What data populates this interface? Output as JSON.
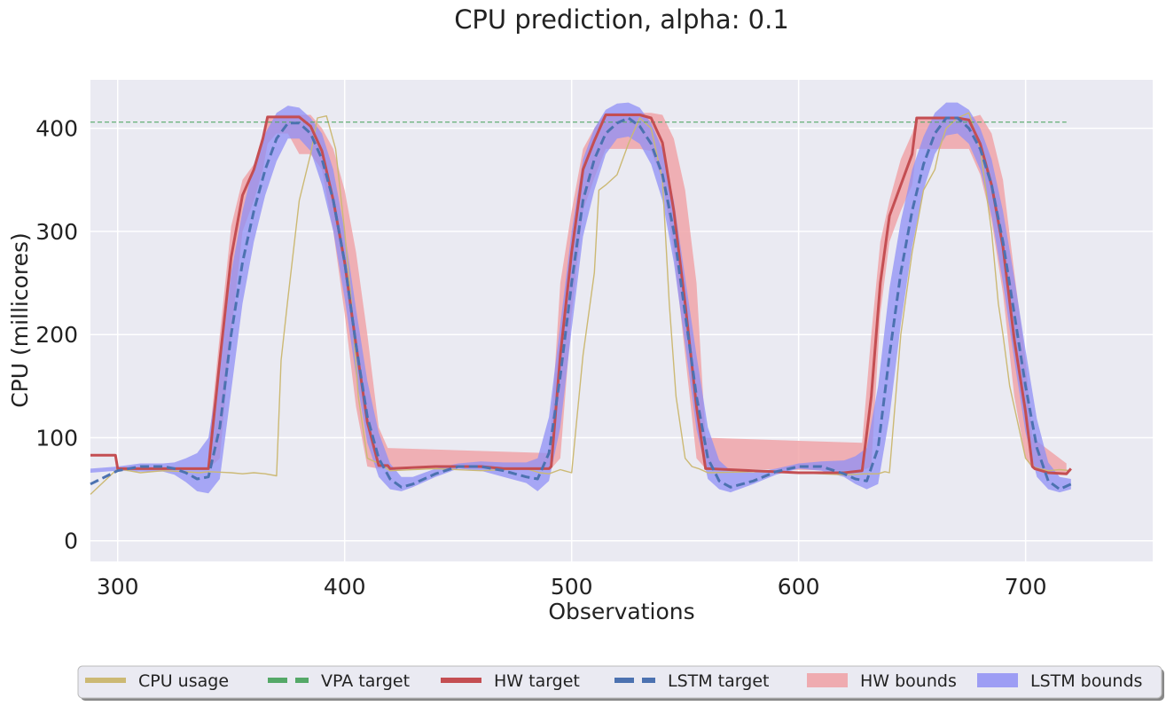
{
  "chart_data": {
    "type": "line",
    "title": "CPU prediction, alpha: 0.1",
    "xlabel": "Observations",
    "ylabel": "CPU (millicores)",
    "xlim": [
      288,
      756
    ],
    "ylim": [
      -20,
      447
    ],
    "xticks": [
      300,
      400,
      500,
      600,
      700
    ],
    "yticks": [
      0,
      100,
      200,
      300,
      400
    ],
    "grid": true,
    "legend_position": "bottom-center",
    "colors": {
      "background": "#eaeaf2",
      "grid": "#ffffff",
      "cpu": "#ccb974",
      "vpa": "#55a868",
      "hw": "#c44e52",
      "lstm": "#4c72b0",
      "hw_band": "#f0a0a4",
      "lstm_band": "#8f8ff5"
    },
    "legend": [
      {
        "key": "cpu",
        "label": "CPU usage"
      },
      {
        "key": "vpa",
        "label": "VPA target"
      },
      {
        "key": "hw",
        "label": "HW target"
      },
      {
        "key": "lstm",
        "label": "LSTM target"
      },
      {
        "key": "hw_band",
        "label": "HW bounds"
      },
      {
        "key": "lstm_band",
        "label": "LSTM bounds"
      }
    ],
    "series": [
      {
        "name": "CPU usage",
        "x": [
          288,
          300,
          310,
          320,
          330,
          336,
          340,
          350,
          355,
          360,
          365,
          370,
          372,
          375,
          380,
          385,
          388,
          392,
          396,
          400,
          403,
          406,
          410,
          415,
          420,
          440,
          460,
          480,
          486,
          490,
          495,
          500,
          505,
          510,
          512,
          515,
          520,
          525,
          530,
          535,
          540,
          543,
          546,
          550,
          553,
          556,
          560,
          580,
          600,
          620,
          630,
          635,
          638,
          640,
          645,
          650,
          655,
          660,
          662,
          665,
          670,
          675,
          680,
          685,
          688,
          690,
          693,
          696,
          700,
          703,
          706,
          710,
          715,
          720
        ],
        "y": [
          45,
          70,
          66,
          68,
          67,
          66,
          67,
          66,
          65,
          66,
          65,
          63,
          175,
          235,
          330,
          375,
          410,
          412,
          380,
          300,
          230,
          140,
          80,
          75,
          68,
          70,
          68,
          70,
          66,
          65,
          69,
          66,
          180,
          260,
          340,
          345,
          355,
          385,
          410,
          400,
          350,
          230,
          140,
          80,
          72,
          70,
          66,
          67,
          66,
          64,
          65,
          65,
          67,
          66,
          200,
          280,
          340,
          360,
          380,
          400,
          410,
          415,
          380,
          300,
          230,
          200,
          150,
          120,
          80,
          72,
          70,
          68,
          69,
          68
        ]
      },
      {
        "name": "VPA target",
        "x": [
          288,
          718
        ],
        "y": [
          406,
          406
        ]
      },
      {
        "name": "HW target",
        "x": [
          288,
          299,
          300,
          340,
          345,
          350,
          355,
          360,
          364,
          366,
          370,
          375,
          380,
          385,
          390,
          395,
          400,
          405,
          410,
          415,
          419,
          420,
          440,
          460,
          470,
          490,
          491,
          495,
          500,
          505,
          510,
          515,
          520,
          525,
          530,
          535,
          540,
          545,
          550,
          555,
          559,
          560,
          580,
          600,
          620,
          628,
          632,
          636,
          640,
          645,
          650,
          652,
          655,
          660,
          665,
          670,
          675,
          680,
          685,
          690,
          695,
          700,
          703,
          704,
          710,
          718,
          720
        ],
        "y": [
          83,
          83,
          70,
          70,
          175,
          275,
          335,
          360,
          390,
          411,
          411,
          411,
          411,
          402,
          378,
          330,
          270,
          190,
          115,
          73,
          73,
          70,
          72,
          72,
          70,
          70,
          72,
          180,
          280,
          360,
          388,
          413,
          413,
          413,
          413,
          410,
          386,
          320,
          230,
          130,
          70,
          70,
          68,
          66,
          66,
          68,
          140,
          250,
          315,
          345,
          375,
          410,
          410,
          410,
          410,
          410,
          408,
          385,
          345,
          285,
          195,
          125,
          72,
          70,
          66,
          65,
          70
        ]
      },
      {
        "name": "LSTM target",
        "x": [
          288,
          300,
          310,
          320,
          325,
          330,
          335,
          340,
          345,
          350,
          355,
          360,
          365,
          370,
          375,
          380,
          385,
          390,
          395,
          400,
          405,
          410,
          415,
          420,
          425,
          430,
          440,
          450,
          460,
          470,
          480,
          485,
          490,
          495,
          500,
          505,
          510,
          515,
          520,
          525,
          530,
          535,
          540,
          545,
          550,
          555,
          560,
          565,
          570,
          580,
          590,
          600,
          610,
          620,
          625,
          630,
          635,
          640,
          645,
          650,
          655,
          660,
          665,
          670,
          675,
          680,
          685,
          690,
          695,
          700,
          705,
          710,
          715,
          720
        ],
        "y": [
          55,
          68,
          72,
          72,
          70,
          66,
          60,
          62,
          110,
          200,
          270,
          320,
          360,
          390,
          405,
          405,
          395,
          370,
          330,
          270,
          190,
          120,
          80,
          60,
          52,
          55,
          65,
          72,
          72,
          68,
          62,
          60,
          85,
          160,
          250,
          330,
          370,
          395,
          405,
          410,
          402,
          385,
          355,
          300,
          220,
          140,
          80,
          58,
          52,
          58,
          67,
          72,
          72,
          65,
          60,
          58,
          90,
          180,
          260,
          320,
          365,
          395,
          410,
          410,
          400,
          380,
          345,
          290,
          220,
          150,
          90,
          58,
          50,
          55
        ]
      },
      {
        "name": "HW bounds",
        "x": [
          340,
          345,
          350,
          355,
          360,
          364,
          366,
          370,
          375,
          380,
          385,
          390,
          395,
          400,
          405,
          410,
          415,
          419,
          490,
          491,
          495,
          500,
          505,
          510,
          515,
          520,
          525,
          530,
          535,
          540,
          545,
          550,
          555,
          559,
          628,
          632,
          636,
          640,
          645,
          650,
          652,
          655,
          660,
          665,
          670,
          675,
          680,
          685,
          690,
          695,
          700,
          703,
          718
        ],
        "lower": [
          70,
          80,
          200,
          300,
          330,
          360,
          385,
          395,
          395,
          375,
          375,
          360,
          300,
          220,
          130,
          72,
          70,
          70,
          70,
          70,
          80,
          220,
          320,
          352,
          380,
          380,
          380,
          380,
          378,
          350,
          280,
          180,
          80,
          70,
          68,
          72,
          220,
          290,
          320,
          345,
          380,
          380,
          380,
          380,
          380,
          380,
          355,
          310,
          240,
          140,
          80,
          70,
          65
        ],
        "upper": [
          90,
          200,
          305,
          350,
          365,
          395,
          410,
          413,
          413,
          413,
          413,
          400,
          380,
          340,
          280,
          200,
          110,
          90,
          85,
          110,
          250,
          320,
          380,
          400,
          415,
          415,
          415,
          415,
          415,
          413,
          390,
          340,
          250,
          100,
          95,
          200,
          290,
          330,
          370,
          395,
          410,
          410,
          410,
          410,
          410,
          410,
          413,
          395,
          350,
          260,
          175,
          100,
          75
        ]
      },
      {
        "name": "LSTM bounds",
        "x": [
          288,
          300,
          310,
          320,
          325,
          330,
          335,
          340,
          345,
          350,
          355,
          360,
          365,
          370,
          375,
          380,
          385,
          390,
          395,
          400,
          405,
          410,
          415,
          420,
          425,
          430,
          440,
          450,
          460,
          470,
          480,
          485,
          490,
          495,
          500,
          505,
          510,
          515,
          520,
          525,
          530,
          535,
          540,
          545,
          550,
          555,
          560,
          565,
          570,
          580,
          590,
          600,
          610,
          620,
          625,
          630,
          635,
          640,
          645,
          650,
          655,
          660,
          665,
          670,
          675,
          680,
          685,
          690,
          695,
          700,
          705,
          710,
          715,
          720
        ],
        "lower": [
          66,
          68,
          67,
          67,
          64,
          57,
          48,
          46,
          60,
          145,
          230,
          290,
          335,
          368,
          390,
          390,
          378,
          345,
          300,
          235,
          160,
          95,
          62,
          50,
          48,
          52,
          62,
          70,
          68,
          62,
          56,
          48,
          58,
          110,
          205,
          295,
          340,
          375,
          390,
          392,
          385,
          365,
          330,
          270,
          190,
          108,
          60,
          50,
          47,
          55,
          64,
          70,
          68,
          62,
          55,
          50,
          55,
          120,
          210,
          285,
          340,
          375,
          393,
          395,
          385,
          360,
          315,
          250,
          175,
          105,
          62,
          50,
          47,
          50
        ],
        "upper": [
          70,
          72,
          75,
          75,
          76,
          80,
          85,
          100,
          170,
          260,
          320,
          365,
          395,
          415,
          422,
          420,
          410,
          395,
          360,
          300,
          225,
          155,
          105,
          75,
          62,
          62,
          70,
          75,
          77,
          76,
          76,
          80,
          120,
          210,
          300,
          370,
          400,
          418,
          424,
          425,
          420,
          405,
          380,
          330,
          255,
          180,
          110,
          78,
          68,
          66,
          70,
          75,
          77,
          78,
          82,
          90,
          150,
          245,
          310,
          360,
          392,
          415,
          425,
          425,
          418,
          400,
          370,
          320,
          255,
          185,
          118,
          76,
          62,
          60
        ]
      }
    ]
  }
}
